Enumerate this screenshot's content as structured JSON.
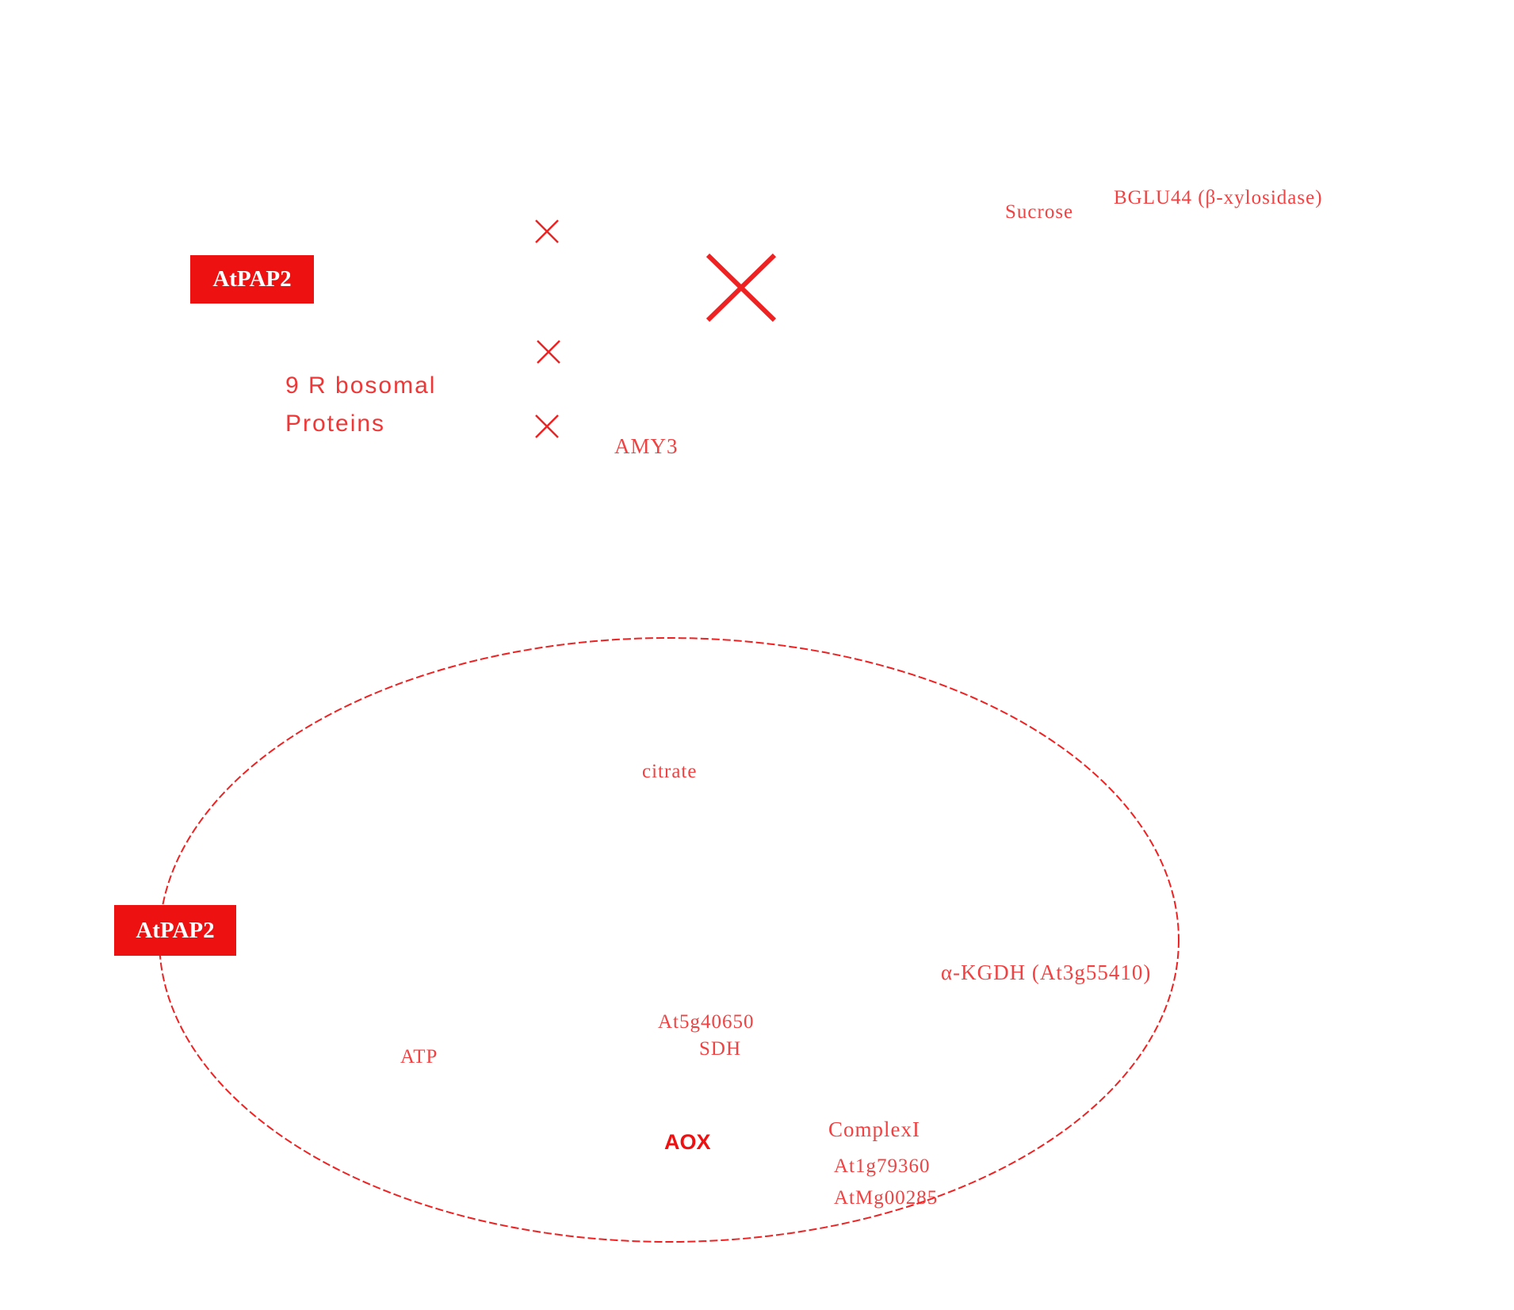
{
  "colors": {
    "accent": "#ee1111",
    "background": "#ffffff"
  },
  "cytosol": {
    "atpap2_box": "AtPAP2",
    "ribosomal_line1": "9 R bosomal",
    "ribosomal_line2": "Proteins",
    "amy3": "AMY3",
    "sucrose": "Sucrose",
    "bglu": "BGLU44 (β-xylosidase)"
  },
  "mitochondrion": {
    "atpap2_box": "AtPAP2",
    "citrate": "citrate",
    "alpha_kgdh": "α-KGDH (At3g55410)",
    "gene_id": "At5g40650",
    "sdh": "SDH",
    "atp": "ATP",
    "aox": "AOX",
    "complex_i": "ComplexI",
    "complex_gene_1": "At1g79360",
    "complex_gene_2": "AtMg00285"
  },
  "icons": [
    "cross-mark-icon",
    "large-cross-mark-icon"
  ]
}
